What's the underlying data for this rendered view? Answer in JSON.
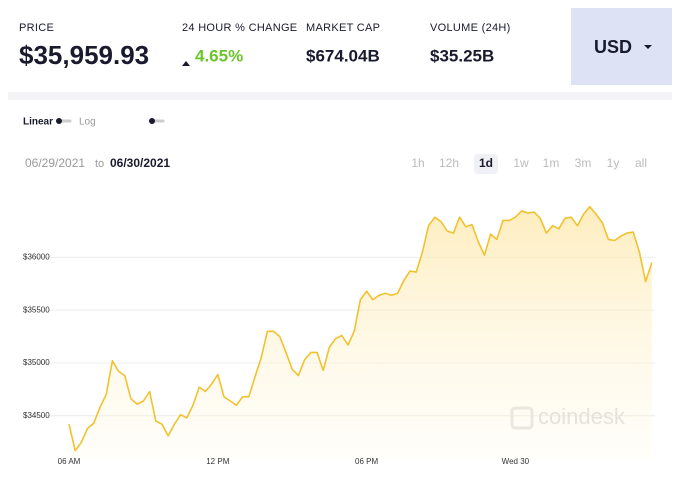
{
  "header": {
    "stats": [
      {
        "label": "PRICE",
        "value": "$35,959.93"
      },
      {
        "label": "24 HOUR % CHANGE",
        "value": "4.65%"
      },
      {
        "label": "MARKET CAP",
        "value": "$674.04B"
      },
      {
        "label": "VOLUME (24H)",
        "value": "$35.25B"
      }
    ],
    "currency": "USD"
  },
  "scale_toggle": [
    "Linear",
    "Log"
  ],
  "date_range": {
    "from": "06/29/2021",
    "to_word": "to",
    "to": "06/30/2021"
  },
  "ranges": [
    "1h",
    "12h",
    "1d",
    "1w",
    "1m",
    "3m",
    "1y",
    "all"
  ],
  "active_range": "1d",
  "watermark": "coindesk",
  "chart_data": {
    "type": "line",
    "color": "#f2c12e",
    "fill": true,
    "grid": true,
    "categories": [
      "06 AM",
      null,
      null,
      null,
      null,
      null,
      null,
      null,
      null,
      null,
      null,
      null,
      null,
      null,
      null,
      null,
      null,
      null,
      null,
      null,
      null,
      null,
      null,
      null,
      "12 PM",
      null,
      null,
      null,
      null,
      null,
      null,
      null,
      null,
      null,
      null,
      null,
      null,
      null,
      null,
      null,
      null,
      null,
      null,
      null,
      null,
      null,
      null,
      null,
      "06 PM",
      null,
      null,
      null,
      null,
      null,
      null,
      null,
      null,
      null,
      null,
      null,
      null,
      null,
      null,
      null,
      null,
      null,
      null,
      null,
      null,
      null,
      null,
      null,
      "Wed 30",
      null,
      null,
      null,
      null,
      null,
      null,
      null,
      null,
      null,
      null,
      null,
      null,
      null,
      null,
      null,
      null,
      null,
      null,
      null,
      null,
      null,
      null
    ],
    "values": [
      34420,
      34170,
      34250,
      34380,
      34430,
      34580,
      34700,
      35020,
      34920,
      34880,
      34660,
      34610,
      34640,
      34730,
      34450,
      34420,
      34310,
      34420,
      34510,
      34480,
      34600,
      34770,
      34730,
      34800,
      34890,
      34680,
      34640,
      34600,
      34680,
      34680,
      34870,
      35050,
      35300,
      35300,
      35250,
      35100,
      34940,
      34880,
      35030,
      35100,
      35100,
      34930,
      35150,
      35230,
      35260,
      35170,
      35300,
      35600,
      35680,
      35600,
      35640,
      35660,
      35640,
      35660,
      35780,
      35870,
      35860,
      36050,
      36300,
      36380,
      36340,
      36250,
      36230,
      36380,
      36290,
      36310,
      36150,
      36020,
      36220,
      36170,
      36350,
      36350,
      36380,
      36440,
      36420,
      36430,
      36370,
      36230,
      36300,
      36270,
      36370,
      36380,
      36300,
      36410,
      36480,
      36410,
      36330,
      36170,
      36160,
      36200,
      36230,
      36240,
      36050,
      35770,
      35950
    ],
    "ylim": [
      34100,
      36600
    ],
    "yticks": [
      {
        "value": 34500,
        "label": "$34500"
      },
      {
        "value": 35000,
        "label": "$35000"
      },
      {
        "value": 35500,
        "label": "$35500"
      },
      {
        "value": 36000,
        "label": "$36000"
      }
    ]
  }
}
